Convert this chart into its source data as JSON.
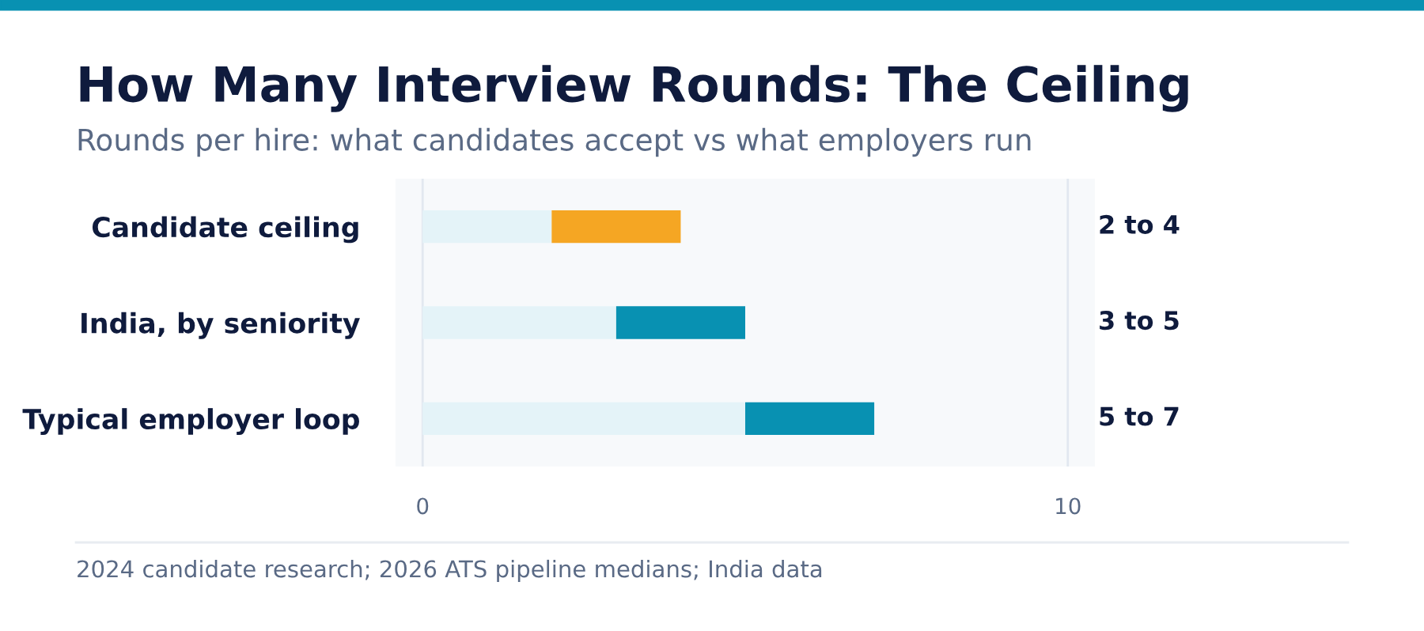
{
  "chart_data": {
    "type": "bar",
    "orientation": "horizontal",
    "stacked": true,
    "title": "How Many Interview Rounds: The Ceiling",
    "subtitle": "Rounds per hire: what candidates accept vs what employers run",
    "categories": [
      "Candidate ceiling",
      "India, by seniority",
      "Typical employer loop"
    ],
    "series": [
      {
        "color": "#e4f3f8",
        "values": [
          2,
          3,
          5
        ]
      },
      {
        "colors": [
          "#f5a623",
          "#0891b2",
          "#0891b2"
        ],
        "values": [
          2,
          2,
          2
        ]
      }
    ],
    "xlim": [
      -0.42,
      10.42
    ],
    "xticks": [
      0,
      10
    ],
    "grid": "x",
    "legend": false,
    "annotations": [
      "2 to 4",
      "3 to 5",
      "5 to 7",
      "2024 candidate research; 2026 ATS pipeline medians; India data"
    ]
  }
}
